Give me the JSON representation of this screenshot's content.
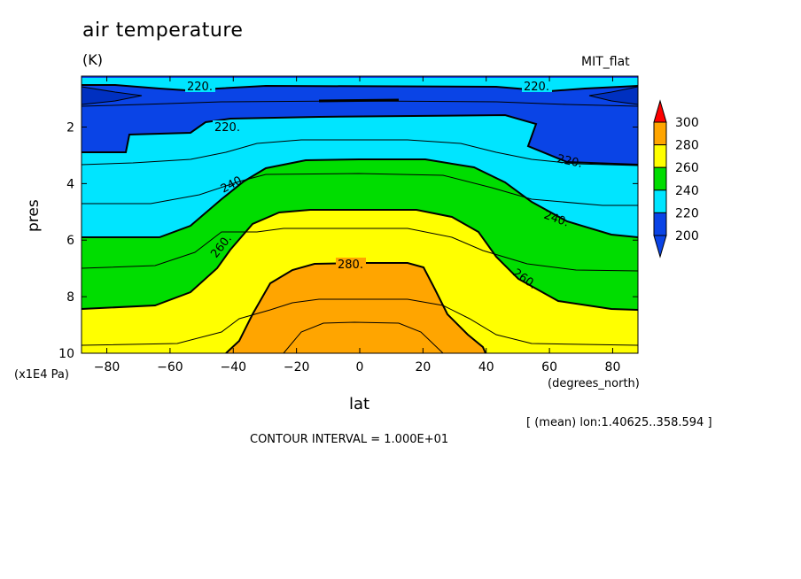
{
  "header": {
    "title": "air temperature",
    "units": "(K)",
    "model": "MIT_flat"
  },
  "footer": {
    "contour_interval": "CONTOUR INTERVAL = 1.000E+01",
    "mean_note": "[ (mean) lon:1.40625..358.594 ]"
  },
  "chart_data": {
    "type": "contour",
    "xlabel": "lat",
    "xunit": "(degrees_north)",
    "ylabel": "pres",
    "yunit": "(x1E4 Pa)",
    "xlim": [
      -88,
      88
    ],
    "ylim": [
      10,
      0.2
    ],
    "x_ticks": [
      -80,
      -60,
      -40,
      -20,
      0,
      20,
      40,
      60,
      80
    ],
    "y_ticks": [
      2,
      4,
      6,
      8,
      10
    ],
    "levels": [
      200,
      220,
      240,
      260,
      280,
      300
    ],
    "colorbar": {
      "labels": [
        300,
        280,
        260,
        240,
        220,
        200
      ],
      "colors": {
        "lt200": "#0a44e6",
        "200": "#0a44e6",
        "220": "#00e5ff",
        "240": "#00dd00",
        "260": "#ffff00",
        "280": "#ffa500",
        "gt300": "#ff0000"
      }
    },
    "contour_labels": [
      "220.",
      "220.",
      "220.",
      "220.",
      "240.",
      "240.",
      "260.",
      "260.",
      "280."
    ],
    "interval": 10
  }
}
